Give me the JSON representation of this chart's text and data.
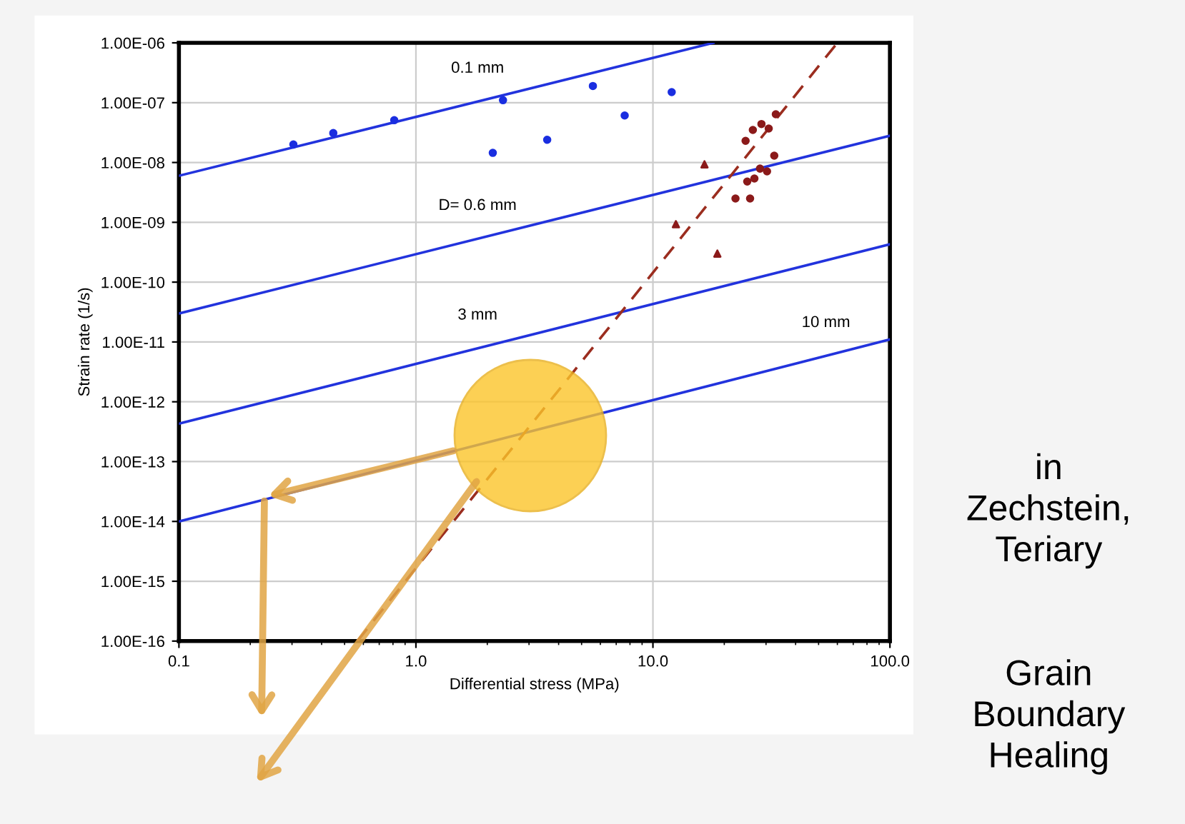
{
  "chart_data": {
    "type": "line",
    "xlabel": "Differential stress (MPa)",
    "ylabel": "Strain rate (1/s)",
    "log": "xy",
    "grid": true,
    "xlim": [
      0.1,
      100
    ],
    "ylim": [
      1e-16,
      1e-06
    ],
    "xticks": [
      {
        "value": 0.1,
        "label": "0.1"
      },
      {
        "value": 1,
        "label": "1.0"
      },
      {
        "value": 10,
        "label": "10.0"
      },
      {
        "value": 100,
        "label": "100.0"
      }
    ],
    "yticks": [
      {
        "value": 1e-16,
        "label": "1.00E-16"
      },
      {
        "value": 1e-15,
        "label": "1.00E-15"
      },
      {
        "value": 1e-14,
        "label": "1.00E-14"
      },
      {
        "value": 1e-13,
        "label": "1.00E-13"
      },
      {
        "value": 1e-12,
        "label": "1.00E-12"
      },
      {
        "value": 1e-11,
        "label": "1.00E-11"
      },
      {
        "value": 1e-10,
        "label": "1.00E-10"
      },
      {
        "value": 1e-09,
        "label": "1.00E-09"
      },
      {
        "value": 1e-08,
        "label": "1.00E-08"
      },
      {
        "value": 1e-07,
        "label": "1.00E-07"
      },
      {
        "value": 1e-06,
        "label": "1.00E-06"
      }
    ],
    "series": [
      {
        "name": "0.1 mm",
        "color": "#2233dd",
        "x": [
          0.1,
          18
        ],
        "values": [
          6e-09,
          1e-06
        ],
        "marker": "none",
        "line_style": "solid"
      },
      {
        "name": "D= 0.6 mm",
        "color": "#2233dd",
        "x": [
          0.1,
          100
        ],
        "values": [
          3e-11,
          2.8e-08
        ],
        "marker": "none",
        "line_style": "solid"
      },
      {
        "name": "3 mm",
        "color": "#2233dd",
        "x": [
          0.1,
          100
        ],
        "values": [
          4.3e-13,
          4.3e-10
        ],
        "marker": "none",
        "line_style": "solid"
      },
      {
        "name": "10 mm",
        "color": "#2233dd",
        "x": [
          0.1,
          100
        ],
        "values": [
          1e-14,
          1.1e-11
        ],
        "marker": "none",
        "line_style": "solid"
      },
      {
        "color": "#9b2d1f",
        "x": [
          0.566,
          60
        ],
        "values": [
          1e-16,
          1e-06
        ],
        "marker": "none",
        "line_style": "dashed"
      },
      {
        "type": "scatter",
        "color": "#1a2ee0",
        "marker": "circle",
        "x": [
          0.304,
          0.448,
          0.81,
          2.33,
          2.11,
          3.58,
          5.58,
          7.6,
          12.0
        ],
        "values": [
          2e-08,
          3.1e-08,
          5.1e-08,
          1.1e-07,
          1.45e-08,
          2.4e-08,
          1.9e-07,
          6.1e-08,
          1.5e-07
        ]
      },
      {
        "type": "scatter",
        "color": "#8b1a1a",
        "marker": "triangle",
        "x": [
          16.5,
          12.5,
          18.7
        ],
        "values": [
          9.3e-09,
          9.3e-10,
          3e-10
        ]
      },
      {
        "type": "scatter",
        "color": "#8b1a1a",
        "marker": "circle",
        "x": [
          22.3,
          25.7,
          32.5,
          28.7,
          26.4,
          24.6,
          30.3,
          28.3,
          25.0,
          26.8,
          30.8,
          33.0
        ],
        "values": [
          2.5e-09,
          2.5e-09,
          1.3e-08,
          4.4e-08,
          3.5e-08,
          2.3e-08,
          7.1e-09,
          7.9e-09,
          4.8e-09,
          5.4e-09,
          3.7e-08,
          6.4e-08
        ]
      }
    ],
    "annotations": [
      "in\nZechstein,\nTeriary",
      "Grain\nBoundary\nHealing"
    ]
  }
}
